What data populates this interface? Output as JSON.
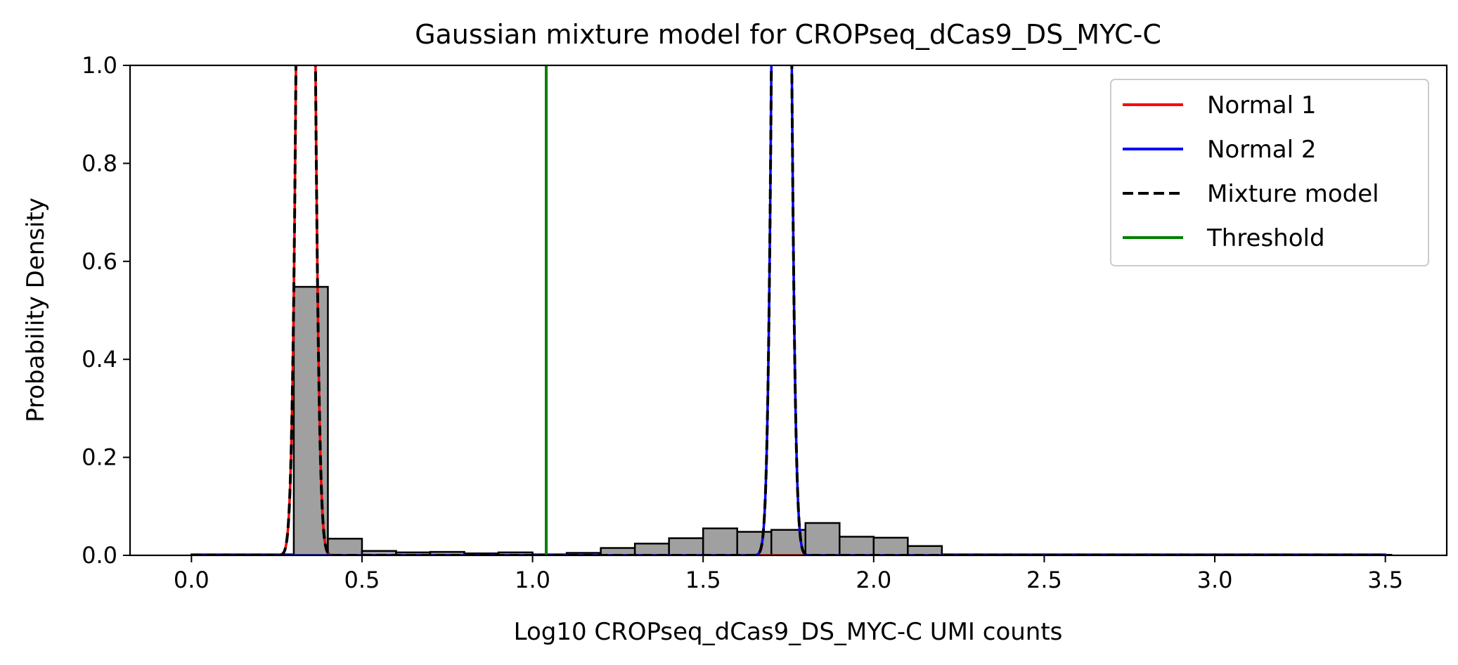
{
  "chart_data": {
    "type": "histogram_with_density",
    "title": "Gaussian mixture model for CROPseq_dCas9_DS_MYC-C",
    "xlabel": "Log10 CROPseq_dCas9_DS_MYC-C UMI counts",
    "ylabel": "Probability Density",
    "xlim": [
      -0.18,
      3.68
    ],
    "ylim": [
      0.0,
      1.0
    ],
    "xticks": [
      0.0,
      0.5,
      1.0,
      1.5,
      2.0,
      2.5,
      3.0,
      3.5
    ],
    "xtick_labels": [
      "0.0",
      "0.5",
      "1.0",
      "1.5",
      "2.0",
      "2.5",
      "3.0",
      "3.5"
    ],
    "yticks": [
      0.0,
      0.2,
      0.4,
      0.6,
      0.8,
      1.0
    ],
    "ytick_labels": [
      "0.0",
      "0.2",
      "0.4",
      "0.6",
      "0.8",
      "1.0"
    ],
    "grid": false,
    "legend_position": "top-right",
    "histogram": {
      "bin_edges": [
        0.0,
        0.1,
        0.2,
        0.3,
        0.4,
        0.5,
        0.6,
        0.7,
        0.8,
        0.9,
        1.0,
        1.1,
        1.2,
        1.3,
        1.4,
        1.5,
        1.6,
        1.7,
        1.8,
        1.9,
        2.0,
        2.1,
        2.2,
        2.3,
        2.4,
        2.5,
        2.6,
        2.7,
        2.8,
        2.9,
        3.0,
        3.1,
        3.2,
        3.3,
        3.4,
        3.5
      ],
      "density": [
        0.002,
        0.002,
        0.002,
        0.548,
        0.034,
        0.009,
        0.006,
        0.007,
        0.004,
        0.006,
        0.002,
        0.005,
        0.015,
        0.024,
        0.035,
        0.055,
        0.048,
        0.052,
        0.066,
        0.038,
        0.036,
        0.019,
        0.002,
        0.002,
        0.002,
        0.002,
        0.002,
        0.002,
        0.002,
        0.002,
        0.002,
        0.002,
        0.002,
        0.002,
        0.002
      ],
      "fill_color": "#a0a0a0",
      "edge_color": "#000000"
    },
    "series": [
      {
        "name": "Normal 1",
        "kind": "gaussian",
        "mean": 0.335,
        "sd": 0.018,
        "weight": 0.16,
        "color": "#ff0000",
        "linestyle": "solid"
      },
      {
        "name": "Normal 2",
        "kind": "gaussian",
        "mean": 1.73,
        "sd": 0.018,
        "weight": 0.18,
        "color": "#0000ff",
        "linestyle": "solid"
      },
      {
        "name": "Mixture model",
        "kind": "sum",
        "color": "#000000",
        "linestyle": "dashed"
      },
      {
        "name": "Threshold",
        "kind": "vline",
        "x": 1.04,
        "color": "#008000",
        "linestyle": "solid"
      }
    ],
    "curve_x_range": [
      0.0,
      3.52
    ]
  }
}
